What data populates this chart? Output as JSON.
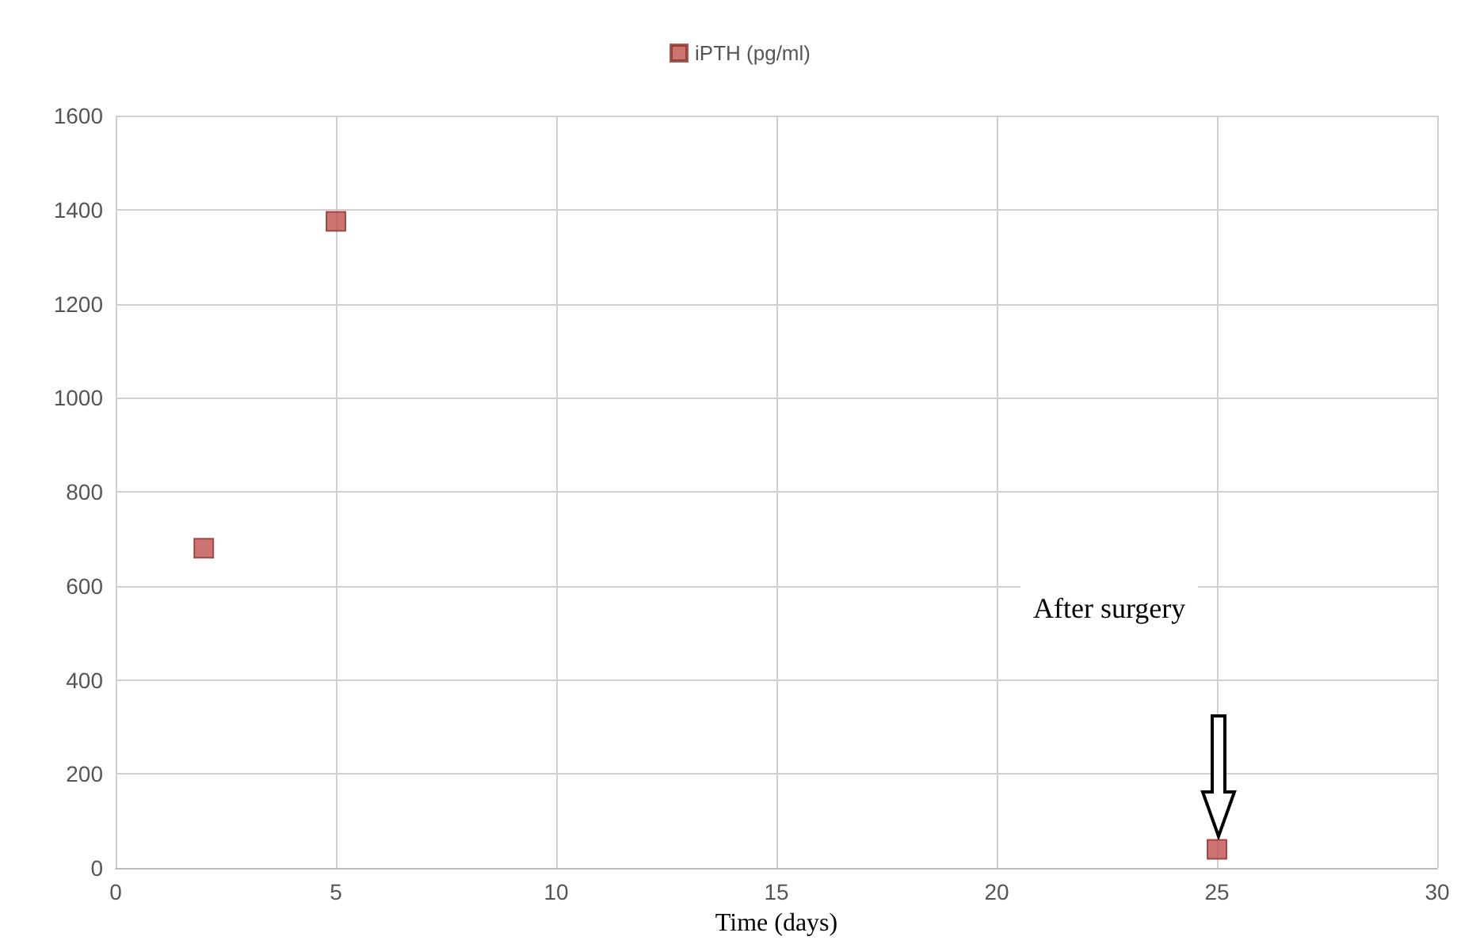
{
  "chart_data": {
    "type": "scatter",
    "xlabel": "Time (days)",
    "x": [
      2,
      5,
      25
    ],
    "series": [
      {
        "name": "iPTH (pg/ml)",
        "color": "#c0504d",
        "values": [
          680,
          1375,
          40
        ]
      }
    ],
    "xlim": [
      0,
      30
    ],
    "xticks": [
      0,
      5,
      10,
      15,
      20,
      25,
      30
    ],
    "ylim": [
      0,
      1600
    ],
    "yticks": [
      0,
      200,
      400,
      600,
      800,
      1000,
      1200,
      1400,
      1600
    ],
    "grid": true,
    "legend": "top",
    "marker": "square",
    "annotations": [
      "After surgery"
    ]
  }
}
